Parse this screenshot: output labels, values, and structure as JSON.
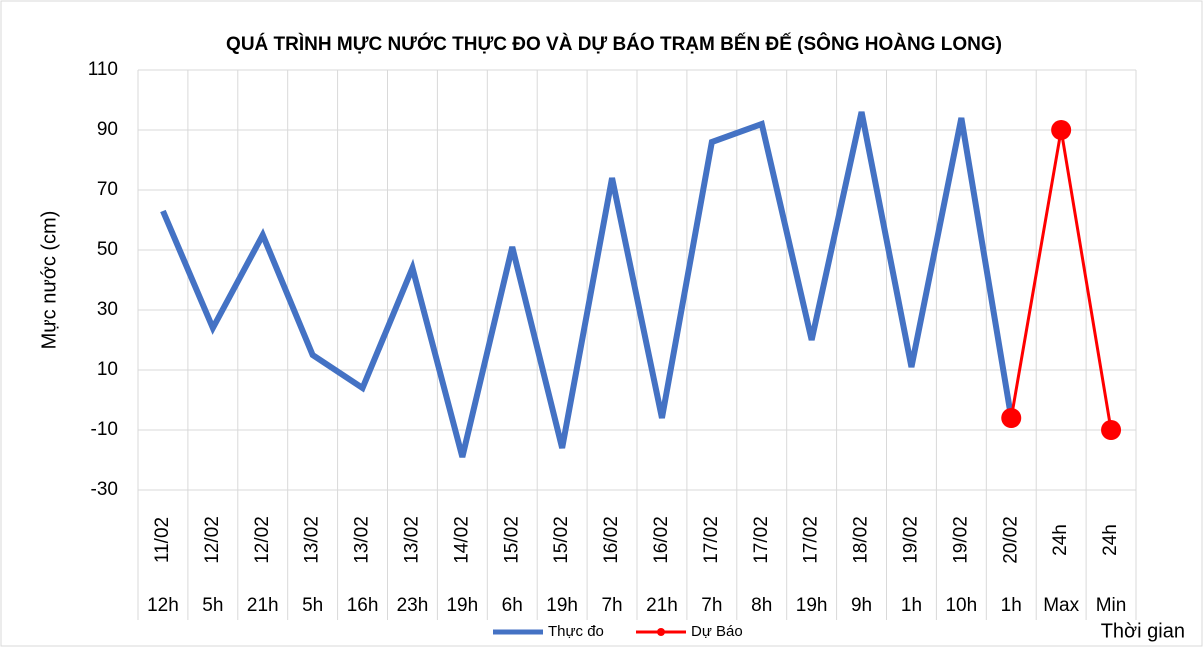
{
  "chart_data": {
    "type": "line",
    "title": "QUÁ TRÌNH MỰC NƯỚC THỰC ĐO VÀ DỰ BÁO TRẠM BẾN ĐẾ (SÔNG HOÀNG LONG)",
    "ylabel": "Mực nước (cm)",
    "xlabel": "Thời gian",
    "category_dates": [
      "11/02",
      "12/02",
      "12/02",
      "13/02",
      "13/02",
      "13/02",
      "14/02",
      "15/02",
      "15/02",
      "16/02",
      "16/02",
      "17/02",
      "17/02",
      "17/02",
      "18/02",
      "19/02",
      "19/02",
      "20/02",
      "24h",
      "24h"
    ],
    "categories": [
      "12h",
      "5h",
      "21h",
      "5h",
      "16h",
      "23h",
      "19h",
      "6h",
      "19h",
      "7h",
      "21h",
      "7h",
      "8h",
      "19h",
      "9h",
      "1h",
      "10h",
      "1h",
      "Max",
      "Min"
    ],
    "series": [
      {
        "name": "Thực đo",
        "color": "#4472c4",
        "markers": false,
        "values": [
          63,
          24,
          55,
          15,
          4,
          44,
          -19,
          51,
          -16,
          74,
          -6,
          86,
          92,
          20,
          96,
          11,
          94,
          -6,
          null,
          null
        ]
      },
      {
        "name": "Dự Báo",
        "color": "#ff0000",
        "markers": true,
        "values": [
          null,
          null,
          null,
          null,
          null,
          null,
          null,
          null,
          null,
          null,
          null,
          null,
          null,
          null,
          null,
          null,
          null,
          -6,
          90,
          -10
        ]
      }
    ],
    "ylim": [
      -30,
      110
    ],
    "yticks": [
      -30,
      -10,
      10,
      30,
      50,
      70,
      90,
      110
    ],
    "grid": true,
    "legend": "bottom"
  }
}
